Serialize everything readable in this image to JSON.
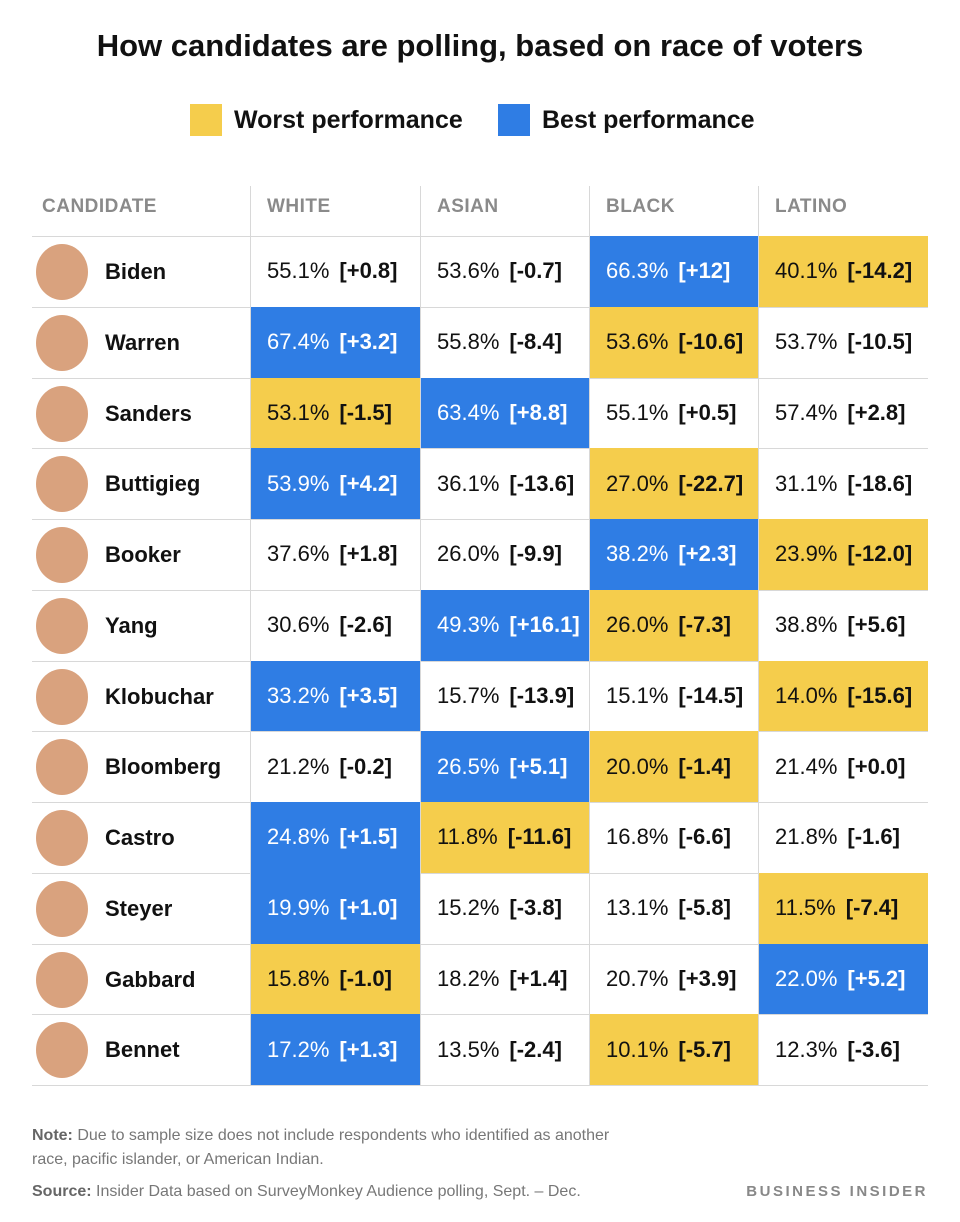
{
  "title": "How candidates are polling, based on race of voters",
  "legend": [
    {
      "key": "worst",
      "label": "Worst performance",
      "color": "#f5cd4c"
    },
    {
      "key": "best",
      "label": "Best performance",
      "color": "#2f7de4"
    }
  ],
  "table": {
    "columns": [
      "CANDIDATE",
      "WHITE",
      "ASIAN",
      "BLACK",
      "LATINO"
    ],
    "rows": [
      {
        "name": "Biden",
        "cells": [
          {
            "value": "55.1%",
            "change": "[+0.8]"
          },
          {
            "value": "53.6%",
            "change": "[-0.7]"
          },
          {
            "value": "66.3%",
            "change": "[+12]",
            "highlight": "best"
          },
          {
            "value": "40.1%",
            "change": "[-14.2]",
            "highlight": "worst"
          }
        ]
      },
      {
        "name": "Warren",
        "cells": [
          {
            "value": "67.4%",
            "change": "[+3.2]",
            "highlight": "best"
          },
          {
            "value": "55.8%",
            "change": "[-8.4]"
          },
          {
            "value": "53.6%",
            "change": "[-10.6]",
            "highlight": "worst"
          },
          {
            "value": "53.7%",
            "change": "[-10.5]"
          }
        ]
      },
      {
        "name": "Sanders",
        "cells": [
          {
            "value": "53.1%",
            "change": "[-1.5]",
            "highlight": "worst"
          },
          {
            "value": "63.4%",
            "change": "[+8.8]",
            "highlight": "best"
          },
          {
            "value": "55.1%",
            "change": "[+0.5]"
          },
          {
            "value": "57.4%",
            "change": "[+2.8]"
          }
        ]
      },
      {
        "name": "Buttigieg",
        "cells": [
          {
            "value": "53.9%",
            "change": "[+4.2]",
            "highlight": "best"
          },
          {
            "value": "36.1%",
            "change": "[-13.6]"
          },
          {
            "value": "27.0%",
            "change": "[-22.7]",
            "highlight": "worst"
          },
          {
            "value": "31.1%",
            "change": "[-18.6]"
          }
        ]
      },
      {
        "name": "Booker",
        "cells": [
          {
            "value": "37.6%",
            "change": "[+1.8]"
          },
          {
            "value": "26.0%",
            "change": "[-9.9]"
          },
          {
            "value": "38.2%",
            "change": "[+2.3]",
            "highlight": "best"
          },
          {
            "value": "23.9%",
            "change": "[-12.0]",
            "highlight": "worst"
          }
        ]
      },
      {
        "name": "Yang",
        "cells": [
          {
            "value": "30.6%",
            "change": "[-2.6]"
          },
          {
            "value": "49.3%",
            "change": "[+16.1]",
            "highlight": "best"
          },
          {
            "value": "26.0%",
            "change": "[-7.3]",
            "highlight": "worst"
          },
          {
            "value": "38.8%",
            "change": "[+5.6]"
          }
        ]
      },
      {
        "name": "Klobuchar",
        "cells": [
          {
            "value": "33.2%",
            "change": "[+3.5]",
            "highlight": "best"
          },
          {
            "value": "15.7%",
            "change": "[-13.9]"
          },
          {
            "value": "15.1%",
            "change": "[-14.5]"
          },
          {
            "value": "14.0%",
            "change": "[-15.6]",
            "highlight": "worst"
          }
        ]
      },
      {
        "name": "Bloomberg",
        "cells": [
          {
            "value": "21.2%",
            "change": "[-0.2]"
          },
          {
            "value": "26.5%",
            "change": "[+5.1]",
            "highlight": "best"
          },
          {
            "value": "20.0%",
            "change": "[-1.4]",
            "highlight": "worst"
          },
          {
            "value": "21.4%",
            "change": "[+0.0]"
          }
        ]
      },
      {
        "name": "Castro",
        "cells": [
          {
            "value": "24.8%",
            "change": "[+1.5]",
            "highlight": "best"
          },
          {
            "value": "11.8%",
            "change": "[-11.6]",
            "highlight": "worst"
          },
          {
            "value": "16.8%",
            "change": "[-6.6]"
          },
          {
            "value": "21.8%",
            "change": "[-1.6]"
          }
        ]
      },
      {
        "name": "Steyer",
        "cells": [
          {
            "value": "19.9%",
            "change": "[+1.0]",
            "highlight": "best"
          },
          {
            "value": "15.2%",
            "change": "[-3.8]"
          },
          {
            "value": "13.1%",
            "change": "[-5.8]"
          },
          {
            "value": "11.5%",
            "change": "[-7.4]",
            "highlight": "worst"
          }
        ]
      },
      {
        "name": "Gabbard",
        "cells": [
          {
            "value": "15.8%",
            "change": "[-1.0]",
            "highlight": "worst"
          },
          {
            "value": "18.2%",
            "change": "[+1.4]"
          },
          {
            "value": "20.7%",
            "change": "[+3.9]"
          },
          {
            "value": "22.0%",
            "change": "[+5.2]",
            "highlight": "best"
          }
        ]
      },
      {
        "name": "Bennet",
        "cells": [
          {
            "value": "17.2%",
            "change": "[+1.3]",
            "highlight": "best"
          },
          {
            "value": "13.5%",
            "change": "[-2.4]"
          },
          {
            "value": "10.1%",
            "change": "[-5.7]",
            "highlight": "worst"
          },
          {
            "value": "12.3%",
            "change": "[-3.6]"
          }
        ]
      }
    ]
  },
  "note": {
    "label": "Note:",
    "text": "Due to sample size does not include respondents who identified as another race, pacific islander, or American Indian."
  },
  "source": {
    "label": "Source:",
    "text": "Insider Data based on SurveyMonkey Audience polling, Sept. – Dec."
  },
  "brand": "BUSINESS INSIDER"
}
